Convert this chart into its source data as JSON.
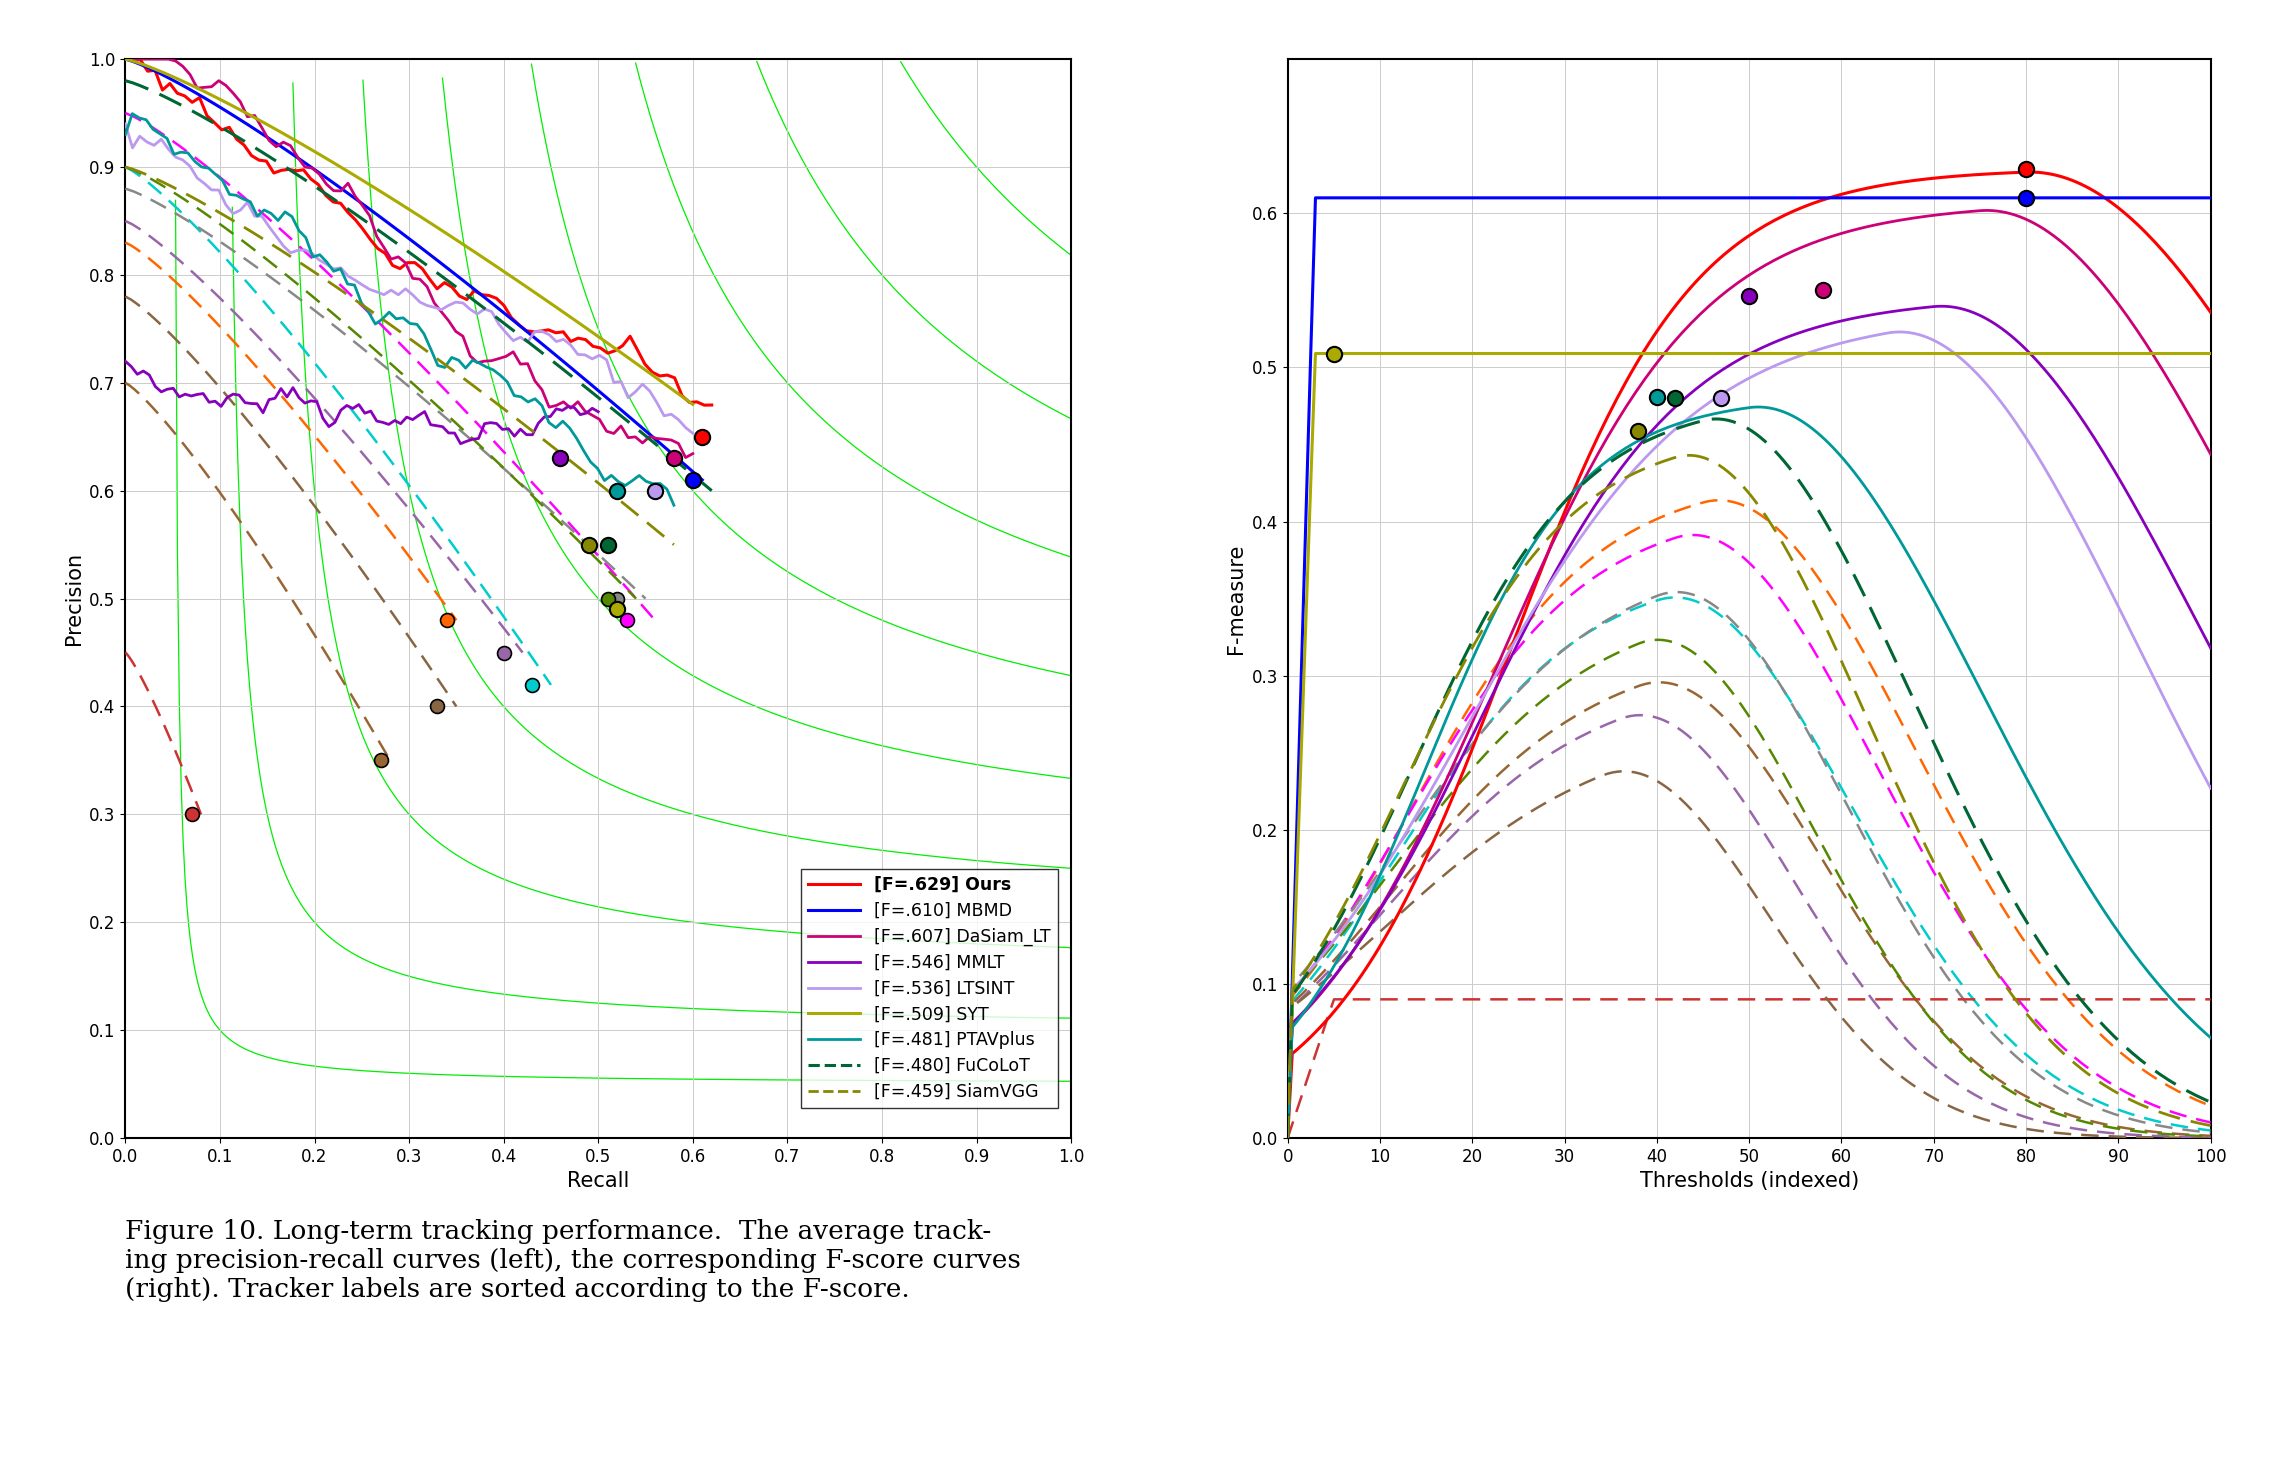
{
  "trackers": [
    {
      "name": "Ours",
      "label_bold": "[F=.629]",
      "label_rest": " Ours",
      "color": "#FF0000",
      "lw": 2.2,
      "ls": "solid",
      "F": 0.629
    },
    {
      "name": "MBMD",
      "label_bold": "[F=.610]",
      "label_rest": " MBMD",
      "color": "#0000FF",
      "lw": 2.2,
      "ls": "solid",
      "F": 0.61
    },
    {
      "name": "DaSiam_LT",
      "label_bold": "[F=.607]",
      "label_rest": " DaSiam_LT",
      "color": "#CC0077",
      "lw": 2.0,
      "ls": "solid",
      "F": 0.607
    },
    {
      "name": "MMLT",
      "label_bold": "[F=.546]",
      "label_rest": " MMLT",
      "color": "#8800BB",
      "lw": 2.0,
      "ls": "solid",
      "F": 0.546
    },
    {
      "name": "LTSINT",
      "label_bold": "[F=.536]",
      "label_rest": " LTSINT",
      "color": "#BB99EE",
      "lw": 2.0,
      "ls": "solid",
      "F": 0.536
    },
    {
      "name": "SYT",
      "label_bold": "[F=.509]",
      "label_rest": " SYT",
      "color": "#AAAA00",
      "lw": 2.2,
      "ls": "solid",
      "F": 0.509
    },
    {
      "name": "PTAVplus",
      "label_bold": "[F=.481]",
      "label_rest": " PTAVplus",
      "color": "#009999",
      "lw": 2.0,
      "ls": "solid",
      "F": 0.481
    },
    {
      "name": "FuCoLoT",
      "label_bold": "[F=.480]",
      "label_rest": " FuCoLoT",
      "color": "#006633",
      "lw": 2.2,
      "ls": "dashed",
      "F": 0.48
    },
    {
      "name": "SiamVGG",
      "label_bold": "[F=.459]",
      "label_rest": " SiamVGG",
      "color": "#888800",
      "lw": 2.0,
      "ls": "dashed",
      "F": 0.459
    }
  ],
  "extra_pr": [
    {
      "color": "#FF6600",
      "lw": 1.8,
      "ls": "dashed"
    },
    {
      "color": "#00CCCC",
      "lw": 1.8,
      "ls": "dashed"
    },
    {
      "color": "#996633",
      "lw": 1.8,
      "ls": "dashed"
    },
    {
      "color": "#FF00FF",
      "lw": 1.8,
      "ls": "dashed"
    },
    {
      "color": "#888888",
      "lw": 1.8,
      "ls": "dashed"
    },
    {
      "color": "#558800",
      "lw": 1.8,
      "ls": "dashed"
    },
    {
      "color": "#CC3333",
      "lw": 1.8,
      "ls": "dashed"
    },
    {
      "color": "#9966AA",
      "lw": 1.8,
      "ls": "dashed"
    },
    {
      "color": "#886644",
      "lw": 1.8,
      "ls": "dashed"
    }
  ]
}
